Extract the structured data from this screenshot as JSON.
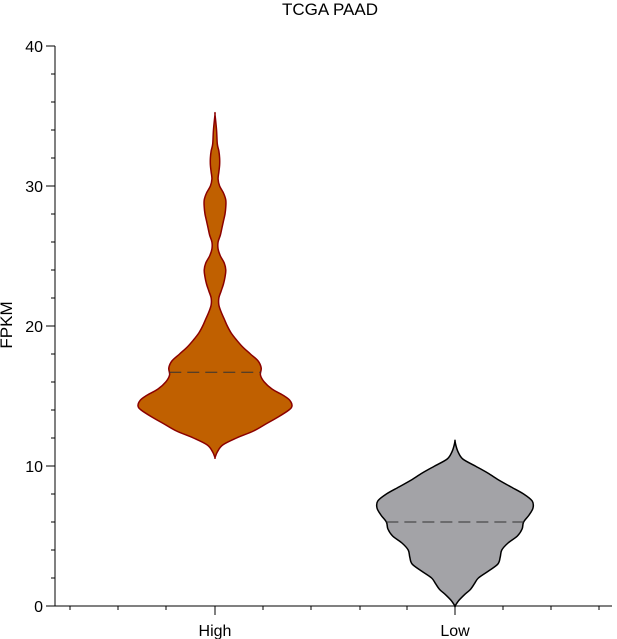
{
  "chart_data": {
    "type": "violin",
    "title": "TCGA PAAD",
    "xlabel": "",
    "ylabel": "FPKM",
    "ylim": [
      0,
      40
    ],
    "yticks": [
      0,
      10,
      20,
      30,
      40
    ],
    "grid": false,
    "categories": [
      "High",
      "Low"
    ],
    "series": [
      {
        "category": "High",
        "fill": "#c06000",
        "stroke": "#8b0000",
        "median": 16.7,
        "min": 10.6,
        "max": 35.1,
        "density": [
          [
            10.6,
            0.0
          ],
          [
            11.0,
            0.03
          ],
          [
            11.5,
            0.1
          ],
          [
            12.0,
            0.28
          ],
          [
            12.5,
            0.5
          ],
          [
            13.0,
            0.66
          ],
          [
            13.5,
            0.82
          ],
          [
            14.0,
            0.96
          ],
          [
            14.3,
            1.0
          ],
          [
            14.7,
            0.97
          ],
          [
            15.0,
            0.9
          ],
          [
            15.5,
            0.74
          ],
          [
            16.0,
            0.64
          ],
          [
            16.5,
            0.59
          ],
          [
            17.0,
            0.6
          ],
          [
            17.5,
            0.56
          ],
          [
            18.0,
            0.46
          ],
          [
            18.5,
            0.36
          ],
          [
            19.0,
            0.28
          ],
          [
            19.5,
            0.21
          ],
          [
            20.0,
            0.16
          ],
          [
            20.5,
            0.12
          ],
          [
            21.0,
            0.08
          ],
          [
            21.5,
            0.05
          ],
          [
            22.0,
            0.05
          ],
          [
            22.5,
            0.08
          ],
          [
            23.0,
            0.11
          ],
          [
            23.5,
            0.13
          ],
          [
            24.0,
            0.14
          ],
          [
            24.5,
            0.12
          ],
          [
            25.0,
            0.07
          ],
          [
            25.5,
            0.04
          ],
          [
            26.0,
            0.04
          ],
          [
            26.5,
            0.07
          ],
          [
            27.0,
            0.09
          ],
          [
            27.5,
            0.11
          ],
          [
            28.0,
            0.13
          ],
          [
            28.5,
            0.14
          ],
          [
            29.0,
            0.14
          ],
          [
            29.5,
            0.11
          ],
          [
            30.0,
            0.06
          ],
          [
            30.5,
            0.04
          ],
          [
            31.0,
            0.05
          ],
          [
            31.5,
            0.06
          ],
          [
            32.0,
            0.06
          ],
          [
            32.5,
            0.05
          ],
          [
            33.0,
            0.03
          ],
          [
            34.0,
            0.02
          ],
          [
            35.1,
            0.0
          ]
        ]
      },
      {
        "category": "Low",
        "fill": "#a3a3a7",
        "stroke": "#000000",
        "median": 6.0,
        "min": 0.0,
        "max": 11.8,
        "density": [
          [
            0.0,
            0.0
          ],
          [
            0.4,
            0.05
          ],
          [
            0.8,
            0.12
          ],
          [
            1.2,
            0.2
          ],
          [
            1.6,
            0.25
          ],
          [
            2.0,
            0.3
          ],
          [
            2.5,
            0.43
          ],
          [
            3.0,
            0.55
          ],
          [
            3.5,
            0.58
          ],
          [
            4.0,
            0.6
          ],
          [
            4.5,
            0.68
          ],
          [
            5.0,
            0.8
          ],
          [
            5.5,
            0.86
          ],
          [
            6.0,
            0.88
          ],
          [
            6.5,
            0.95
          ],
          [
            7.0,
            1.0
          ],
          [
            7.5,
            0.99
          ],
          [
            8.0,
            0.88
          ],
          [
            8.5,
            0.72
          ],
          [
            9.0,
            0.56
          ],
          [
            9.5,
            0.42
          ],
          [
            10.0,
            0.26
          ],
          [
            10.5,
            0.1
          ],
          [
            11.0,
            0.04
          ],
          [
            11.5,
            0.01
          ],
          [
            11.8,
            0.0
          ]
        ]
      }
    ]
  }
}
